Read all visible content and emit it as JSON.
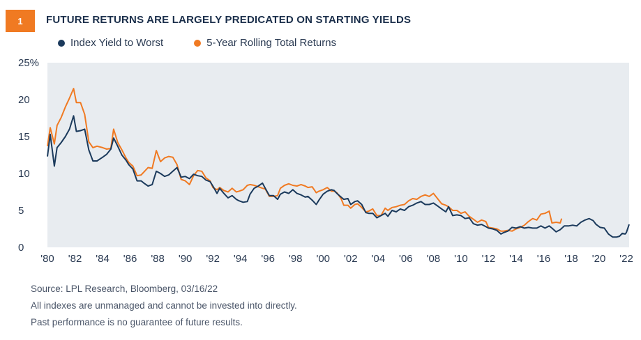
{
  "header": {
    "badge": "1",
    "title": "FUTURE RETURNS ARE LARGELY PREDICATED ON STARTING YIELDS"
  },
  "colors": {
    "navy": "#1b3a5c",
    "orange": "#f07a22",
    "plot_bg": "#e8ecf0",
    "badge": "#f07a22"
  },
  "notes": {
    "source": "Source: LPL Research, Bloomberg,  03/16/22",
    "disclaimer1": "All indexes are unmanaged and cannot be invested into directly.",
    "disclaimer2": "Past performance is no guarantee of future results."
  },
  "chart_data": {
    "type": "line",
    "title": "FUTURE RETURNS ARE LARGELY PREDICATED ON STARTING YIELDS",
    "xlim": [
      1980,
      2022.2
    ],
    "ylim": [
      0,
      25
    ],
    "y_ticks": [
      0,
      5,
      10,
      15,
      20,
      25
    ],
    "y_tick_labels": [
      "0",
      "5",
      "10",
      "15",
      "20",
      "25%"
    ],
    "x_ticks": [
      1980,
      1982,
      1984,
      1986,
      1988,
      1990,
      1992,
      1994,
      1996,
      1998,
      2000,
      2002,
      2004,
      2006,
      2008,
      2010,
      2012,
      2014,
      2016,
      2018,
      2020,
      2022
    ],
    "x_tick_labels": [
      "'80",
      "'82",
      "'84",
      "'86",
      "'88",
      "'90",
      "'92",
      "'94",
      "'96",
      "'98",
      "'00",
      "'02",
      "'04",
      "'06",
      "'08",
      "'10",
      "'12",
      "'14",
      "'16",
      "'18",
      "'20",
      "'22"
    ],
    "legend_position": "top-left",
    "grid": false,
    "series": [
      {
        "name": "Index Yield to Worst",
        "color": "#1b3a5c",
        "points": [
          [
            1980.0,
            12.3
          ],
          [
            1980.2,
            15.3
          ],
          [
            1980.5,
            11.0
          ],
          [
            1980.7,
            13.5
          ],
          [
            1981.0,
            14.2
          ],
          [
            1981.3,
            15.0
          ],
          [
            1981.6,
            16.0
          ],
          [
            1981.9,
            17.8
          ],
          [
            1982.1,
            15.7
          ],
          [
            1982.4,
            15.8
          ],
          [
            1982.7,
            16.0
          ],
          [
            1983.0,
            13.2
          ],
          [
            1983.3,
            11.7
          ],
          [
            1983.6,
            11.7
          ],
          [
            1984.0,
            12.2
          ],
          [
            1984.3,
            12.6
          ],
          [
            1984.6,
            13.3
          ],
          [
            1984.8,
            14.8
          ],
          [
            1985.1,
            13.7
          ],
          [
            1985.4,
            12.5
          ],
          [
            1985.7,
            11.8
          ],
          [
            1985.9,
            11.2
          ],
          [
            1986.2,
            10.6
          ],
          [
            1986.5,
            9.0
          ],
          [
            1986.8,
            9.0
          ],
          [
            1987.0,
            8.7
          ],
          [
            1987.3,
            8.3
          ],
          [
            1987.6,
            8.5
          ],
          [
            1987.9,
            10.3
          ],
          [
            1988.2,
            10.0
          ],
          [
            1988.5,
            9.6
          ],
          [
            1988.8,
            9.8
          ],
          [
            1989.1,
            10.3
          ],
          [
            1989.4,
            10.8
          ],
          [
            1989.7,
            9.5
          ],
          [
            1990.0,
            9.6
          ],
          [
            1990.3,
            9.3
          ],
          [
            1990.6,
            9.9
          ],
          [
            1990.9,
            9.7
          ],
          [
            1991.2,
            9.6
          ],
          [
            1991.5,
            9.1
          ],
          [
            1991.8,
            8.9
          ],
          [
            1992.0,
            8.3
          ],
          [
            1992.3,
            7.3
          ],
          [
            1992.5,
            8.0
          ],
          [
            1992.8,
            7.3
          ],
          [
            1993.1,
            6.7
          ],
          [
            1993.4,
            7.0
          ],
          [
            1993.7,
            6.5
          ],
          [
            1993.9,
            6.3
          ],
          [
            1994.2,
            6.1
          ],
          [
            1994.5,
            6.2
          ],
          [
            1994.7,
            7.2
          ],
          [
            1995.0,
            8.0
          ],
          [
            1995.3,
            8.3
          ],
          [
            1995.6,
            8.7
          ],
          [
            1995.8,
            8.0
          ],
          [
            1996.1,
            7.0
          ],
          [
            1996.4,
            7.0
          ],
          [
            1996.7,
            6.5
          ],
          [
            1996.9,
            7.2
          ],
          [
            1997.2,
            7.5
          ],
          [
            1997.5,
            7.3
          ],
          [
            1997.8,
            7.8
          ],
          [
            1998.1,
            7.3
          ],
          [
            1998.4,
            7.1
          ],
          [
            1998.7,
            6.8
          ],
          [
            1998.9,
            6.9
          ],
          [
            1999.2,
            6.4
          ],
          [
            1999.5,
            5.8
          ],
          [
            1999.7,
            6.4
          ],
          [
            2000.0,
            7.2
          ],
          [
            2000.3,
            7.6
          ],
          [
            2000.6,
            7.8
          ],
          [
            2000.8,
            7.7
          ],
          [
            2001.0,
            7.3
          ],
          [
            2001.3,
            6.8
          ],
          [
            2001.5,
            6.5
          ],
          [
            2001.8,
            6.6
          ],
          [
            2002.0,
            5.8
          ],
          [
            2002.3,
            6.2
          ],
          [
            2002.5,
            6.3
          ],
          [
            2002.8,
            5.8
          ],
          [
            2003.1,
            4.7
          ],
          [
            2003.3,
            4.6
          ],
          [
            2003.6,
            4.6
          ],
          [
            2003.9,
            4.0
          ],
          [
            2004.2,
            4.3
          ],
          [
            2004.5,
            4.6
          ],
          [
            2004.7,
            4.2
          ],
          [
            2005.0,
            5.0
          ],
          [
            2005.3,
            4.8
          ],
          [
            2005.6,
            5.2
          ],
          [
            2005.9,
            5.0
          ],
          [
            2006.2,
            5.5
          ],
          [
            2006.5,
            5.7
          ],
          [
            2006.8,
            6.0
          ],
          [
            2007.1,
            6.2
          ],
          [
            2007.4,
            5.8
          ],
          [
            2007.7,
            5.8
          ],
          [
            2008.0,
            6.0
          ],
          [
            2008.3,
            5.6
          ],
          [
            2008.6,
            5.2
          ],
          [
            2008.9,
            4.8
          ],
          [
            2009.1,
            5.5
          ],
          [
            2009.4,
            4.3
          ],
          [
            2009.7,
            4.4
          ],
          [
            2010.0,
            4.3
          ],
          [
            2010.3,
            3.9
          ],
          [
            2010.6,
            4.0
          ],
          [
            2010.9,
            3.2
          ],
          [
            2011.2,
            3.0
          ],
          [
            2011.5,
            3.1
          ],
          [
            2011.8,
            2.8
          ],
          [
            2012.0,
            2.6
          ],
          [
            2012.3,
            2.5
          ],
          [
            2012.6,
            2.3
          ],
          [
            2012.9,
            1.8
          ],
          [
            2013.1,
            2.0
          ],
          [
            2013.4,
            2.2
          ],
          [
            2013.7,
            2.7
          ],
          [
            2014.0,
            2.6
          ],
          [
            2014.3,
            2.8
          ],
          [
            2014.6,
            2.6
          ],
          [
            2014.9,
            2.7
          ],
          [
            2015.2,
            2.6
          ],
          [
            2015.5,
            2.6
          ],
          [
            2015.8,
            2.9
          ],
          [
            2016.1,
            2.6
          ],
          [
            2016.4,
            2.9
          ],
          [
            2016.6,
            2.6
          ],
          [
            2016.9,
            2.1
          ],
          [
            2017.2,
            2.4
          ],
          [
            2017.5,
            2.9
          ],
          [
            2017.8,
            2.9
          ],
          [
            2018.1,
            3.0
          ],
          [
            2018.4,
            2.9
          ],
          [
            2018.7,
            3.4
          ],
          [
            2019.0,
            3.7
          ],
          [
            2019.3,
            3.9
          ],
          [
            2019.6,
            3.6
          ],
          [
            2019.8,
            3.1
          ],
          [
            2020.1,
            2.7
          ],
          [
            2020.4,
            2.6
          ],
          [
            2020.7,
            1.8
          ],
          [
            2021.0,
            1.4
          ],
          [
            2021.3,
            1.4
          ],
          [
            2021.5,
            1.5
          ],
          [
            2021.7,
            1.9
          ],
          [
            2021.9,
            1.8
          ],
          [
            2022.0,
            2.0
          ],
          [
            2022.2,
            3.1
          ]
        ]
      },
      {
        "name": "5-Year Rolling Total Returns",
        "color": "#f07a22",
        "points": [
          [
            1980.0,
            13.7
          ],
          [
            1980.2,
            16.2
          ],
          [
            1980.5,
            14.0
          ],
          [
            1980.7,
            16.5
          ],
          [
            1981.0,
            17.6
          ],
          [
            1981.3,
            19.0
          ],
          [
            1981.6,
            20.2
          ],
          [
            1981.9,
            21.5
          ],
          [
            1982.1,
            19.6
          ],
          [
            1982.4,
            19.6
          ],
          [
            1982.7,
            18.0
          ],
          [
            1983.0,
            14.3
          ],
          [
            1983.3,
            13.5
          ],
          [
            1983.6,
            13.7
          ],
          [
            1984.0,
            13.5
          ],
          [
            1984.3,
            13.3
          ],
          [
            1984.6,
            13.4
          ],
          [
            1984.8,
            16.0
          ],
          [
            1985.1,
            14.2
          ],
          [
            1985.4,
            13.2
          ],
          [
            1985.7,
            12.1
          ],
          [
            1985.9,
            11.5
          ],
          [
            1986.2,
            11.0
          ],
          [
            1986.5,
            9.7
          ],
          [
            1986.8,
            9.8
          ],
          [
            1987.0,
            10.2
          ],
          [
            1987.3,
            10.8
          ],
          [
            1987.6,
            10.7
          ],
          [
            1987.9,
            13.1
          ],
          [
            1988.2,
            11.6
          ],
          [
            1988.5,
            12.1
          ],
          [
            1988.8,
            12.3
          ],
          [
            1989.1,
            12.2
          ],
          [
            1989.4,
            11.2
          ],
          [
            1989.7,
            9.2
          ],
          [
            1990.0,
            9.0
          ],
          [
            1990.3,
            8.5
          ],
          [
            1990.6,
            9.7
          ],
          [
            1990.9,
            10.4
          ],
          [
            1991.2,
            10.3
          ],
          [
            1991.5,
            9.4
          ],
          [
            1991.8,
            9.0
          ],
          [
            1992.0,
            8.1
          ],
          [
            1992.3,
            7.8
          ],
          [
            1992.5,
            8.1
          ],
          [
            1992.8,
            7.7
          ],
          [
            1993.1,
            7.5
          ],
          [
            1993.4,
            8.0
          ],
          [
            1993.7,
            7.5
          ],
          [
            1993.9,
            7.6
          ],
          [
            1994.2,
            7.8
          ],
          [
            1994.5,
            8.4
          ],
          [
            1994.7,
            8.5
          ],
          [
            1995.0,
            8.4
          ],
          [
            1995.3,
            8.2
          ],
          [
            1995.6,
            8.0
          ],
          [
            1995.8,
            7.9
          ],
          [
            1996.1,
            6.9
          ],
          [
            1996.4,
            6.9
          ],
          [
            1996.7,
            7.0
          ],
          [
            1996.9,
            8.0
          ],
          [
            1997.2,
            8.4
          ],
          [
            1997.5,
            8.6
          ],
          [
            1997.8,
            8.4
          ],
          [
            1998.1,
            8.3
          ],
          [
            1998.4,
            8.5
          ],
          [
            1998.7,
            8.3
          ],
          [
            1998.9,
            8.1
          ],
          [
            1999.2,
            8.2
          ],
          [
            1999.5,
            7.4
          ],
          [
            1999.7,
            7.6
          ],
          [
            2000.0,
            7.8
          ],
          [
            2000.3,
            8.1
          ],
          [
            2000.6,
            7.6
          ],
          [
            2000.8,
            7.6
          ],
          [
            2001.0,
            7.4
          ],
          [
            2001.3,
            6.6
          ],
          [
            2001.5,
            5.7
          ],
          [
            2001.8,
            5.7
          ],
          [
            2002.0,
            5.3
          ],
          [
            2002.3,
            5.8
          ],
          [
            2002.5,
            5.9
          ],
          [
            2002.8,
            5.4
          ],
          [
            2003.1,
            4.8
          ],
          [
            2003.3,
            4.9
          ],
          [
            2003.6,
            5.2
          ],
          [
            2003.9,
            4.3
          ],
          [
            2004.2,
            4.3
          ],
          [
            2004.5,
            5.3
          ],
          [
            2004.7,
            5.0
          ],
          [
            2005.0,
            5.4
          ],
          [
            2005.3,
            5.5
          ],
          [
            2005.6,
            5.7
          ],
          [
            2005.9,
            5.8
          ],
          [
            2006.2,
            6.3
          ],
          [
            2006.5,
            6.6
          ],
          [
            2006.8,
            6.5
          ],
          [
            2007.1,
            6.9
          ],
          [
            2007.4,
            7.1
          ],
          [
            2007.7,
            6.9
          ],
          [
            2008.0,
            7.3
          ],
          [
            2008.3,
            6.6
          ],
          [
            2008.6,
            5.9
          ],
          [
            2008.9,
            5.7
          ],
          [
            2009.1,
            5.5
          ],
          [
            2009.4,
            5.0
          ],
          [
            2009.7,
            5.0
          ],
          [
            2010.0,
            4.6
          ],
          [
            2010.3,
            4.8
          ],
          [
            2010.6,
            4.2
          ],
          [
            2010.9,
            3.8
          ],
          [
            2011.2,
            3.4
          ],
          [
            2011.5,
            3.7
          ],
          [
            2011.8,
            3.5
          ],
          [
            2012.0,
            2.7
          ],
          [
            2012.3,
            2.6
          ],
          [
            2012.6,
            2.5
          ],
          [
            2012.9,
            2.2
          ],
          [
            2013.1,
            2.2
          ],
          [
            2013.4,
            2.3
          ],
          [
            2013.7,
            2.2
          ],
          [
            2014.0,
            2.5
          ],
          [
            2014.3,
            2.7
          ],
          [
            2014.6,
            3.0
          ],
          [
            2014.9,
            3.5
          ],
          [
            2015.2,
            3.9
          ],
          [
            2015.5,
            3.7
          ],
          [
            2015.8,
            4.5
          ],
          [
            2016.1,
            4.6
          ],
          [
            2016.4,
            4.9
          ],
          [
            2016.6,
            3.3
          ],
          [
            2016.9,
            3.4
          ],
          [
            2017.2,
            3.3
          ],
          [
            2017.3,
            3.9
          ]
        ]
      }
    ]
  }
}
